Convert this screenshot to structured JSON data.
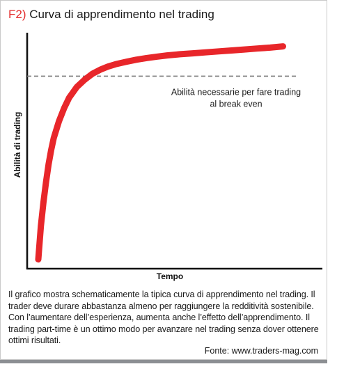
{
  "figure": {
    "label": "F2)",
    "title": "Curva di apprendimento nel trading",
    "caption": "Il grafico mostra schematicamente la tipica curva di apprendimento nel trading. Il trader deve durare abbastanza almeno per raggiungere la redditività sostenibile. Con l’aumentare dell’esperienza, aumenta anche l’effetto dell’apprendimento. Il trading part-time è un ottimo modo per avanzare nel trading senza dover ottenere ottimi risultati.",
    "source": "Fonte: www.traders-mag.com"
  },
  "colors": {
    "curve": "#e8262a",
    "axis": "#111111",
    "threshold": "#7a7a7a",
    "label_accent": "#e32b2b"
  },
  "chart_data": {
    "type": "line",
    "title": "Curva di apprendimento nel trading",
    "xlabel": "Tempo",
    "ylabel": "Abilità di trading",
    "xlim": [
      0,
      100
    ],
    "ylim": [
      0,
      100
    ],
    "grid": false,
    "legend": "none",
    "series": [
      {
        "x": [
          0,
          1,
          2,
          3,
          4,
          5,
          6,
          8,
          10,
          12,
          15,
          18,
          21,
          24,
          27,
          30,
          34,
          38,
          42,
          46,
          50,
          55,
          60,
          65,
          70,
          75,
          80,
          85,
          90,
          95
        ],
        "y": [
          3,
          17,
          27,
          35.5,
          43,
          49,
          54,
          61,
          66.5,
          71,
          75.5,
          78.5,
          81,
          82.7,
          84,
          85,
          86,
          86.9,
          87.6,
          88.2,
          88.7,
          89.2,
          89.6,
          90,
          90.4,
          90.8,
          91.2,
          91.6,
          92,
          92.5
        ]
      }
    ],
    "reference_line": {
      "y": 80,
      "style": "dashed",
      "label_lines": [
        "Abilità necessarie per fare trading",
        "al break even"
      ]
    }
  }
}
